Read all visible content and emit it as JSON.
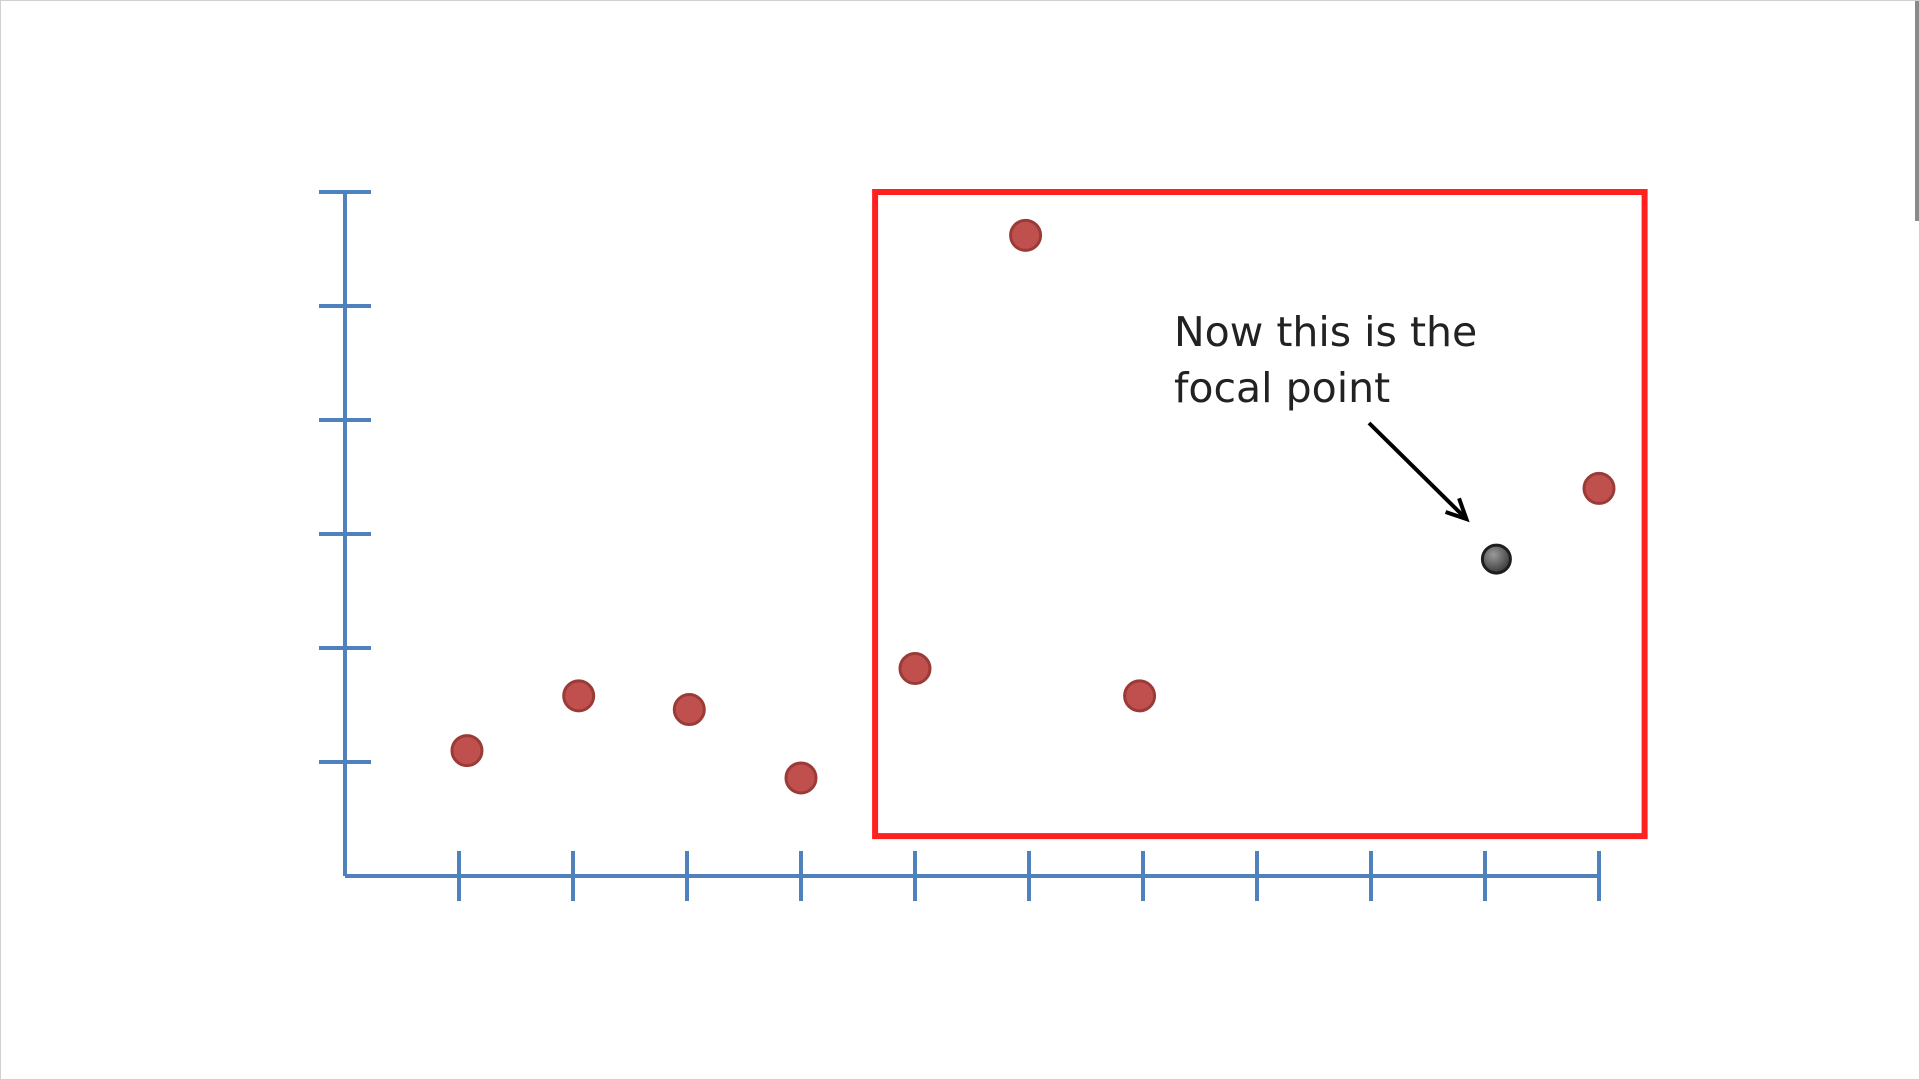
{
  "chart_data": {
    "type": "scatter",
    "title": "",
    "xlabel": "",
    "ylabel": "",
    "xlim": [
      0,
      11
    ],
    "ylim": [
      0,
      6
    ],
    "x_ticks": [
      1,
      2,
      3,
      4,
      5,
      6,
      7,
      8,
      9,
      10,
      11
    ],
    "y_ticks": [
      1,
      2,
      3,
      4,
      5,
      6
    ],
    "grid": false,
    "series": [
      {
        "color": "#c0504d",
        "points": [
          {
            "x": 1.07,
            "y": 1.1
          },
          {
            "x": 2.05,
            "y": 1.58
          },
          {
            "x": 3.02,
            "y": 1.46
          },
          {
            "x": 4.0,
            "y": 0.86
          },
          {
            "x": 5.0,
            "y": 1.82
          },
          {
            "x": 5.97,
            "y": 5.62
          },
          {
            "x": 6.97,
            "y": 1.58
          },
          {
            "x": 11.0,
            "y": 3.4
          }
        ]
      },
      {
        "color": "#3c3c3c",
        "points": [
          {
            "x": 10.1,
            "y": 2.78
          }
        ]
      }
    ],
    "highlight_box": {
      "color": "#ff2020",
      "x_range": [
        4.65,
        11.4
      ],
      "y_range": [
        0.35,
        6.0
      ]
    },
    "annotation": {
      "lines": [
        "Now this is the",
        "focal point"
      ],
      "arrow_color": "#000000"
    }
  },
  "colors": {
    "axis": "#4f81bd",
    "point": "#c0504d",
    "point_stroke": "#9b3b38",
    "focal": "#3c3c3c",
    "box": "#ff2020"
  }
}
